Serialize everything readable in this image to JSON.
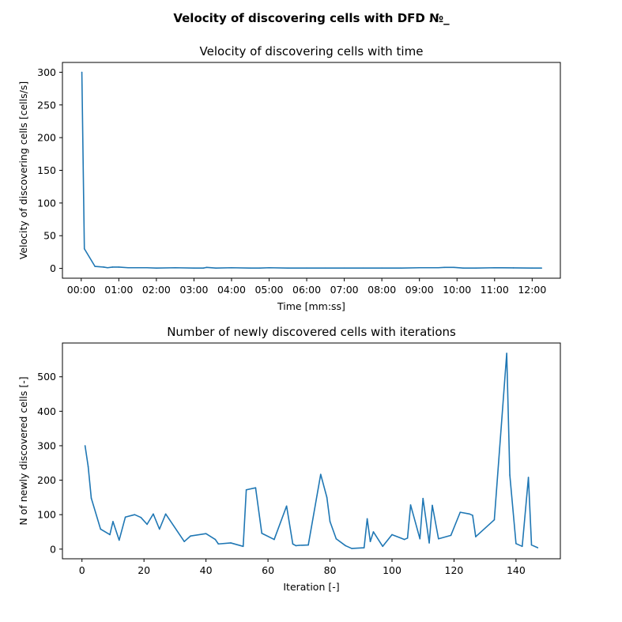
{
  "figure": {
    "suptitle": "Velocity of discovering cells with DFD №_"
  },
  "chart_data": [
    {
      "type": "line",
      "title": "Velocity of discovering cells with time",
      "xlabel": "Time [mm:ss]",
      "ylabel": "Velocity of discovering cells [cells/s]",
      "x_unit": "seconds",
      "xlim": [
        -30,
        765
      ],
      "ylim": [
        -15,
        315
      ],
      "xticks": [
        0,
        60,
        120,
        180,
        240,
        300,
        360,
        420,
        480,
        540,
        600,
        660,
        720
      ],
      "xtick_labels": [
        "00:00",
        "01:00",
        "02:00",
        "03:00",
        "04:00",
        "05:00",
        "06:00",
        "07:00",
        "08:00",
        "09:00",
        "10:00",
        "11:00",
        "12:00"
      ],
      "yticks": [
        0,
        50,
        100,
        150,
        200,
        250,
        300
      ],
      "ytick_labels": [
        "0",
        "50",
        "100",
        "150",
        "200",
        "250",
        "300"
      ],
      "color": "#1f77b4",
      "grid": false,
      "series": [
        {
          "x": [
            1,
            5,
            22,
            36,
            42,
            50,
            60,
            75,
            90,
            105,
            120,
            150,
            180,
            195,
            200,
            215,
            240,
            270,
            285,
            300,
            330,
            360,
            390,
            420,
            450,
            480,
            510,
            540,
            570,
            580,
            595,
            610,
            630,
            660,
            690,
            720,
            735
          ],
          "y": [
            300,
            30,
            3,
            2,
            1,
            2,
            2,
            1,
            1,
            1,
            0.5,
            1,
            0.5,
            0.5,
            1.5,
            0.5,
            1,
            0.5,
            0.5,
            1,
            0.5,
            0.5,
            0.5,
            0.5,
            0.5,
            0.5,
            0.5,
            1,
            1,
            1.5,
            1.5,
            0.5,
            0.5,
            1,
            0.8,
            0.5,
            0.5
          ]
        }
      ]
    },
    {
      "type": "line",
      "title": "Number of newly discovered cells with iterations",
      "xlabel": "Iteration [-]",
      "ylabel": "N of newly discovered cells [-]",
      "xlim": [
        -6.3,
        154.3
      ],
      "ylim": [
        -28,
        598
      ],
      "xticks": [
        0,
        20,
        40,
        60,
        80,
        100,
        120,
        140
      ],
      "xtick_labels": [
        "0",
        "20",
        "40",
        "60",
        "80",
        "100",
        "120",
        "140"
      ],
      "yticks": [
        0,
        100,
        200,
        300,
        400,
        500
      ],
      "ytick_labels": [
        "0",
        "100",
        "200",
        "300",
        "400",
        "500"
      ],
      "color": "#1f77b4",
      "grid": false,
      "series": [
        {
          "x": [
            1,
            2,
            3,
            6,
            9,
            10,
            12,
            14,
            17,
            19,
            21,
            23,
            25,
            27,
            33,
            35,
            40,
            43,
            44,
            48,
            52,
            53,
            56,
            58,
            62,
            66,
            68,
            69,
            70,
            73,
            77,
            79,
            80,
            82,
            85,
            87,
            91,
            92,
            93,
            94,
            97,
            100,
            104,
            105,
            106,
            109,
            110,
            112,
            113,
            115,
            119,
            122,
            125,
            126,
            127,
            133,
            137,
            138,
            140,
            142,
            144,
            145,
            147
          ],
          "y": [
            300,
            240,
            148,
            58,
            42,
            80,
            26,
            93,
            100,
            92,
            72,
            102,
            58,
            102,
            22,
            38,
            45,
            28,
            15,
            18,
            8,
            172,
            178,
            46,
            28,
            125,
            15,
            10,
            11,
            12,
            217,
            150,
            80,
            30,
            10,
            2,
            4,
            88,
            22,
            50,
            8,
            42,
            28,
            32,
            128,
            30,
            147,
            18,
            127,
            30,
            40,
            107,
            102,
            98,
            36,
            85,
            568,
            215,
            16,
            8,
            208,
            12,
            4
          ]
        }
      ]
    }
  ]
}
